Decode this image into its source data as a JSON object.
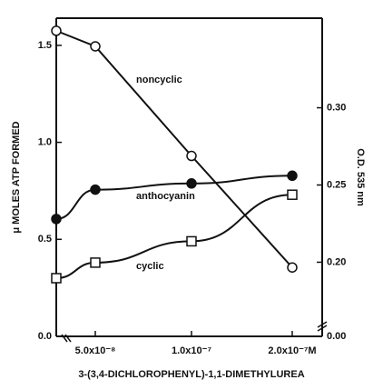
{
  "chart_data": {
    "type": "line",
    "categories": [
      null,
      "5.0x10⁻⁸",
      "1.0x10⁻⁷",
      "2.0x10⁻⁷M"
    ],
    "xlabel": "3-(3,4-DICHLOROPHENYL)-1,1-DIMETHYLUREA",
    "ylabel": "μ MOLES  ATP  FORMED",
    "y2label": "O.D.  535 nm",
    "ylim": [
      0,
      1.64
    ],
    "yticks": [
      {
        "value": 0,
        "label": "0.0"
      },
      0.5,
      {
        "value": 1,
        "label": "1.0"
      },
      1.5
    ],
    "y2lim": [
      0.152,
      0.358
    ],
    "y2ticks": [
      {
        "value": 0.2,
        "label": "0.20"
      },
      0.25,
      {
        "value": 0.3,
        "label": "0.30"
      }
    ],
    "y2_break_label": "0.00",
    "series": [
      {
        "name": "noncyclic",
        "marker": "open-circle",
        "color": "#111111",
        "values": [
          1.575,
          1.495,
          0.93,
          0.355
        ]
      },
      {
        "name": "anthocyanin",
        "marker": "filled-circle",
        "color": "#111111",
        "axis": "y2",
        "values": [
          0.228,
          0.247,
          0.251,
          0.256
        ]
      },
      {
        "name": "cyclic",
        "marker": "open-square",
        "color": "#111111",
        "values": [
          0.3,
          0.38,
          0.49,
          0.73
        ]
      }
    ]
  }
}
